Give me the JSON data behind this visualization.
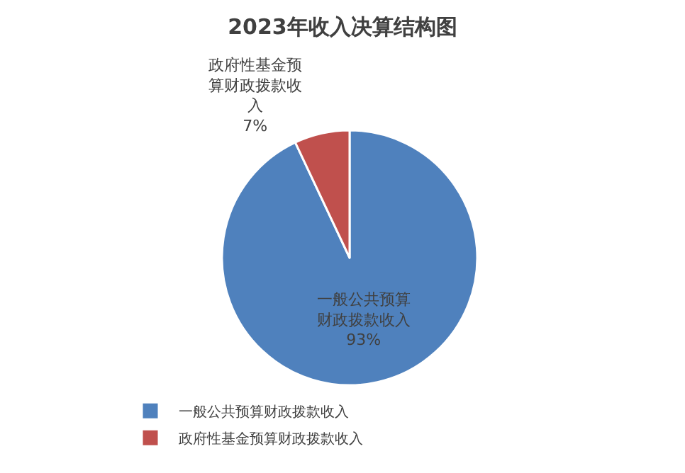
{
  "chart_data": {
    "type": "pie",
    "title": "2023年收入决算结构图",
    "categories": [
      "一般公共预算财政拨款收入",
      "政府性基金预算财政拨款收入"
    ],
    "values": [
      93,
      7
    ],
    "colors": [
      "#4f81bd",
      "#c0504d"
    ],
    "value_labels": [
      "一般公共预算财政拨款收入\n93%",
      "政府性基金预算财政拨款收入\n7%"
    ],
    "legend": "bottom"
  }
}
